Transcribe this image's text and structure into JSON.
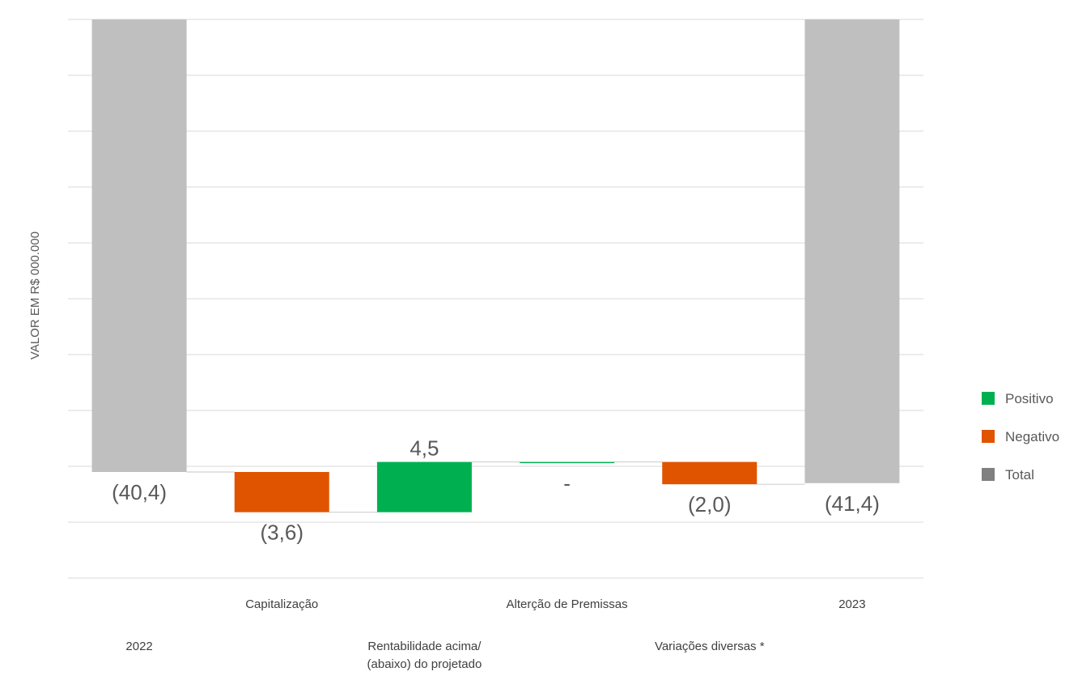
{
  "chart_data": {
    "type": "waterfall",
    "ylabel": "VALOR EM R$ 000.000",
    "categories": [
      "2022",
      "Capitalização",
      "Rentabilidade acima/\n(abaixo) do projetado",
      "Alterção de Premissas",
      "Variações diversas *",
      "2023"
    ],
    "bars": [
      {
        "kind": "total",
        "value": -40.4,
        "label": "(40,4)"
      },
      {
        "kind": "negative",
        "value": -3.6,
        "label": "(3,6)"
      },
      {
        "kind": "positive",
        "value": 4.5,
        "label": "4,5"
      },
      {
        "kind": "positive",
        "value": 0,
        "label": "-"
      },
      {
        "kind": "negative",
        "value": -2.0,
        "label": "(2,0)"
      },
      {
        "kind": "total",
        "value": -41.4,
        "label": "(41,4)"
      }
    ],
    "legend": [
      {
        "name": "Positivo",
        "color": "#00b050"
      },
      {
        "name": "Negativo",
        "color": "#e05400"
      },
      {
        "name": "Total",
        "color": "#808080"
      }
    ],
    "colors": {
      "positive": "#00b050",
      "negative": "#e05400",
      "total": "#bfbfbf",
      "grid": "#d9d9d9"
    },
    "legend_position": "right",
    "grid": true
  }
}
